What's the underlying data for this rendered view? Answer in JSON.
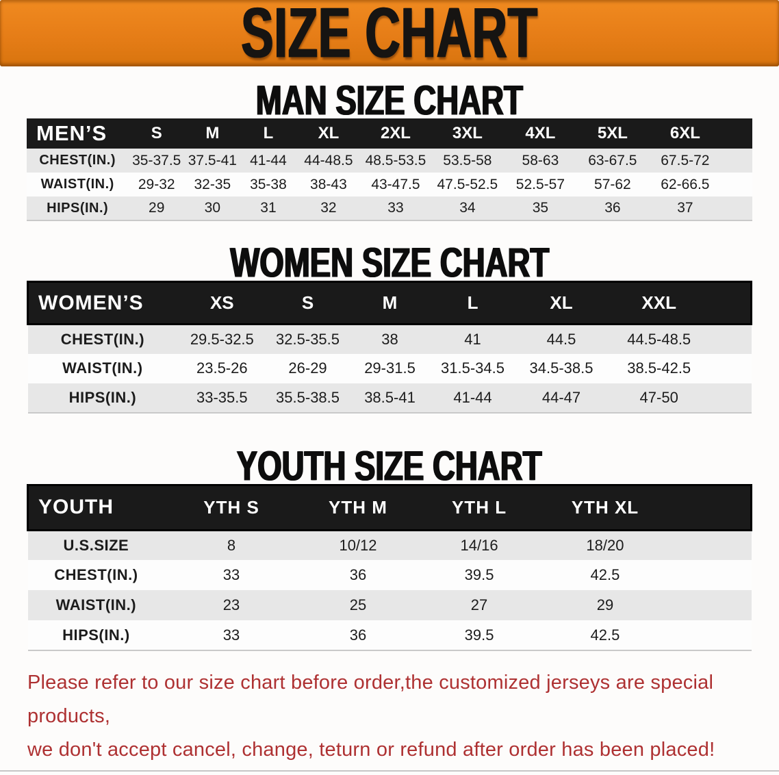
{
  "banner": {
    "title": "SIZE CHART"
  },
  "sections": [
    {
      "heading": "MAN SIZE CHART",
      "table": {
        "label": "MEN’S",
        "columns": [
          "S",
          "M",
          "L",
          "XL",
          "2XL",
          "3XL",
          "4XL",
          "5XL",
          "6XL"
        ],
        "rows": [
          {
            "label": "CHEST(IN.)",
            "values": [
              "35-37.5",
              "37.5-41",
              "41-44",
              "44-48.5",
              "48.5-53.5",
              "53.5-58",
              "58-63",
              "63-67.5",
              "67.5-72"
            ]
          },
          {
            "label": "WAIST(IN.)",
            "values": [
              "29-32",
              "32-35",
              "35-38",
              "38-43",
              "43-47.5",
              "47.5-52.5",
              "52.5-57",
              "57-62",
              "62-66.5"
            ]
          },
          {
            "label": "HIPS(IN.)",
            "values": [
              "29",
              "30",
              "31",
              "32",
              "33",
              "34",
              "35",
              "36",
              "37"
            ]
          }
        ]
      }
    },
    {
      "heading": "WOMEN SIZE CHART",
      "table": {
        "label": "WOMEN’S",
        "columns": [
          "XS",
          "S",
          "M",
          "L",
          "XL",
          "XXL"
        ],
        "rows": [
          {
            "label": "CHEST(IN.)",
            "values": [
              "29.5-32.5",
              "32.5-35.5",
              "38",
              "41",
              "44.5",
              "44.5-48.5"
            ]
          },
          {
            "label": "WAIST(IN.)",
            "values": [
              "23.5-26",
              "26-29",
              "29-31.5",
              "31.5-34.5",
              "34.5-38.5",
              "38.5-42.5"
            ]
          },
          {
            "label": "HIPS(IN.)",
            "values": [
              "33-35.5",
              "35.5-38.5",
              "38.5-41",
              "41-44",
              "44-47",
              "47-50"
            ]
          }
        ]
      }
    },
    {
      "heading": "YOUTH SIZE CHART",
      "table": {
        "label": "YOUTH",
        "columns": [
          "YTH S",
          "YTH M",
          "YTH L",
          "YTH XL"
        ],
        "rows": [
          {
            "label": "U.S.SIZE",
            "values": [
              "8",
              "10/12",
              "14/16",
              "18/20"
            ]
          },
          {
            "label": "CHEST(IN.)",
            "values": [
              "33",
              "36",
              "39.5",
              "42.5"
            ]
          },
          {
            "label": "WAIST(IN.)",
            "values": [
              "23",
              "25",
              "27",
              "29"
            ]
          },
          {
            "label": "HIPS(IN.)",
            "values": [
              "33",
              "36",
              "39.5",
              "42.5"
            ]
          }
        ]
      }
    }
  ],
  "disclaimer": {
    "lines": [
      "Please refer to our size chart before order,the customized jerseys are special products,",
      "we don't accept cancel, change, teturn or refund after order has been placed!"
    ]
  },
  "colors": {
    "banner_orange": "#e67d17",
    "header_bar_black": "#1a1a1a",
    "row_shade_gray": "#e7e7e7",
    "disclaimer_red": "#ae3132"
  }
}
